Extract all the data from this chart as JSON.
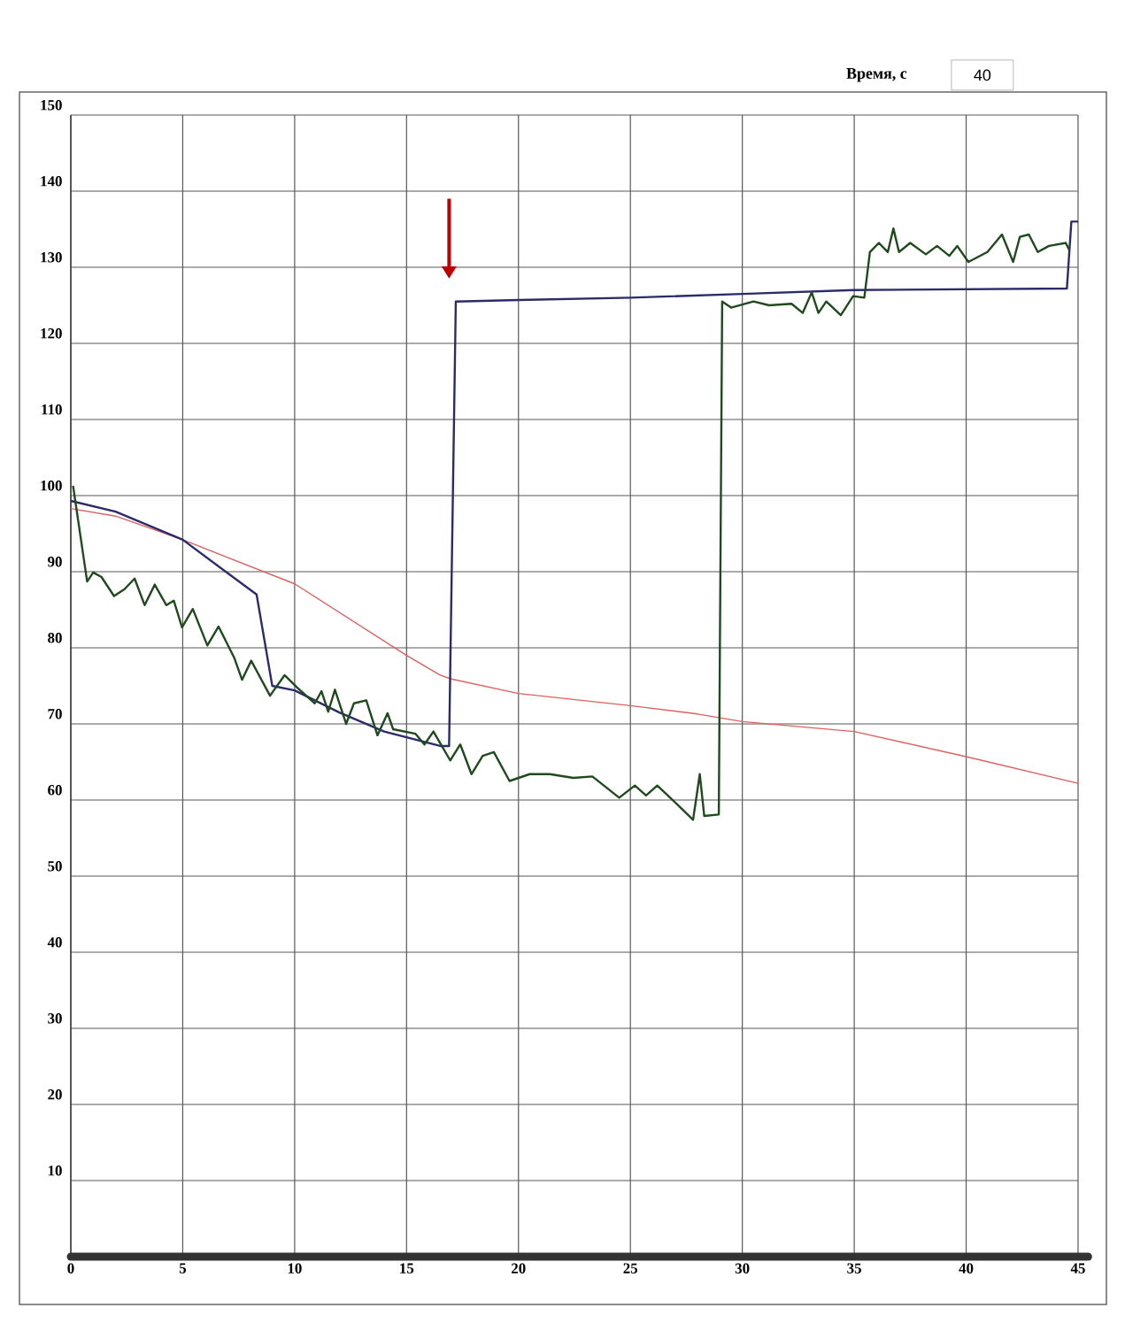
{
  "chart_data": {
    "type": "line",
    "xlabel": "Время, с",
    "annotations": [
      "40"
    ],
    "xlim": [
      0,
      45
    ],
    "ylim": [
      0,
      150
    ],
    "xticks": [
      0,
      5,
      10,
      15,
      20,
      25,
      30,
      35,
      40,
      45
    ],
    "yticks": [
      {
        "value": 0,
        "label": null
      },
      10,
      20,
      30,
      40,
      50,
      60,
      70,
      80,
      90,
      100,
      110,
      120,
      130,
      140,
      150
    ],
    "grid": true,
    "series": [
      {
        "color": "#e06060",
        "x": [
          0,
          2,
          5,
          10,
          15,
          16.5,
          17,
          20,
          25,
          28,
          30,
          35,
          40,
          45
        ],
        "values": [
          98.3,
          97.3,
          94.2,
          88.4,
          79,
          76.4,
          75.9,
          74,
          72.4,
          71.3,
          70.3,
          69,
          65.7,
          62.2
        ]
      },
      {
        "color": "#2b2b6b",
        "x": [
          0,
          2,
          5,
          8.3,
          9,
          10,
          12,
          14,
          16.5,
          16.9,
          17.2,
          20,
          25,
          30,
          35,
          44.5,
          44.7,
          45
        ],
        "values": [
          99.3,
          97.9,
          94.2,
          87,
          75,
          74.4,
          71.5,
          69,
          67.1,
          67.1,
          125.5,
          125.7,
          126,
          126.5,
          127,
          127.2,
          136,
          136
        ]
      },
      {
        "color": "#1e4a1e",
        "x": [
          0.1,
          0.73,
          1.0,
          1.37,
          1.93,
          2.4,
          2.85,
          3.3,
          3.75,
          4.27,
          4.6,
          4.97,
          5.45,
          6.1,
          6.6,
          7.3,
          7.65,
          8.06,
          8.9,
          9.55,
          10.1,
          10.9,
          11.2,
          11.5,
          11.8,
          12.3,
          12.65,
          13.2,
          13.7,
          14.15,
          14.4,
          15.4,
          15.8,
          16.2,
          16.95,
          17.4,
          17.9,
          18.4,
          18.9,
          19.6,
          20.5,
          21.4,
          22.45,
          23.3,
          24.5,
          25.2,
          25.7,
          26.2,
          27.1,
          27.8,
          28.1,
          28.3,
          28.95,
          29.1,
          29.5,
          30.5,
          31.2,
          32.2,
          32.7,
          33.1,
          33.4,
          33.75,
          34.4,
          34.95,
          35.45,
          35.7,
          36.1,
          36.5,
          36.75,
          37,
          37.5,
          38.2,
          38.7,
          39.25,
          39.6,
          40.1,
          40.95,
          41.6,
          42.1,
          42.4,
          42.8,
          43.2,
          43.7,
          44.45,
          44.6
        ],
        "values": [
          101.3,
          88.7,
          89.9,
          89.3,
          86.8,
          87.7,
          89.1,
          85.6,
          88.3,
          85.6,
          86.2,
          82.7,
          85.1,
          80.3,
          82.8,
          78.7,
          75.8,
          78.3,
          73.7,
          76.4,
          74.8,
          72.7,
          74.3,
          71.6,
          74.5,
          70,
          72.7,
          73.1,
          68.5,
          71.4,
          69.3,
          68.7,
          67.3,
          69,
          65.2,
          67.3,
          63.4,
          65.8,
          66.3,
          62.5,
          63.4,
          63.4,
          62.9,
          63.1,
          60.3,
          61.9,
          60.6,
          61.9,
          59.4,
          57.4,
          63.4,
          57.9,
          58.1,
          125.5,
          124.7,
          125.5,
          125,
          125.2,
          124,
          126.7,
          124,
          125.5,
          123.7,
          126.2,
          126,
          132,
          133.2,
          132,
          135.1,
          132,
          133.2,
          131.7,
          132.8,
          131.5,
          132.8,
          130.7,
          132,
          134.3,
          130.7,
          134,
          134.3,
          132,
          132.8,
          133.2,
          132.3
        ]
      }
    ]
  }
}
